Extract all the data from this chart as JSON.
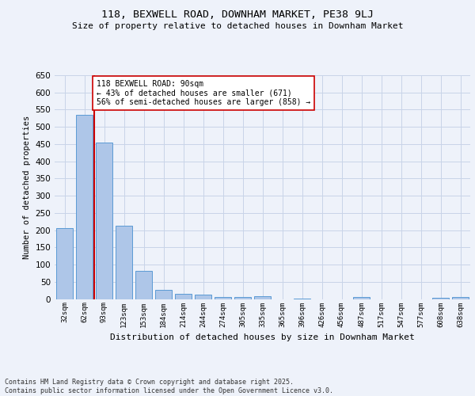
{
  "title": "118, BEXWELL ROAD, DOWNHAM MARKET, PE38 9LJ",
  "subtitle": "Size of property relative to detached houses in Downham Market",
  "xlabel": "Distribution of detached houses by size in Downham Market",
  "ylabel": "Number of detached properties",
  "bar_color": "#aec6e8",
  "bar_edge_color": "#5b9bd5",
  "background_color": "#eef2fa",
  "grid_color": "#c8d4e8",
  "vline_color": "#cc0000",
  "annotation_text": "118 BEXWELL ROAD: 90sqm\n← 43% of detached houses are smaller (671)\n56% of semi-detached houses are larger (858) →",
  "annotation_box_color": "#ffffff",
  "annotation_box_edge": "#cc0000",
  "footer_text": "Contains HM Land Registry data © Crown copyright and database right 2025.\nContains public sector information licensed under the Open Government Licence v3.0.",
  "categories": [
    "32sqm",
    "62sqm",
    "93sqm",
    "123sqm",
    "153sqm",
    "184sqm",
    "214sqm",
    "244sqm",
    "274sqm",
    "305sqm",
    "335sqm",
    "365sqm",
    "396sqm",
    "426sqm",
    "456sqm",
    "487sqm",
    "517sqm",
    "547sqm",
    "577sqm",
    "608sqm",
    "638sqm"
  ],
  "values": [
    207,
    535,
    455,
    212,
    82,
    27,
    15,
    12,
    6,
    5,
    8,
    0,
    2,
    0,
    0,
    5,
    0,
    0,
    0,
    4,
    5
  ],
  "ylim": [
    0,
    650
  ],
  "yticks": [
    0,
    50,
    100,
    150,
    200,
    250,
    300,
    350,
    400,
    450,
    500,
    550,
    600,
    650
  ]
}
